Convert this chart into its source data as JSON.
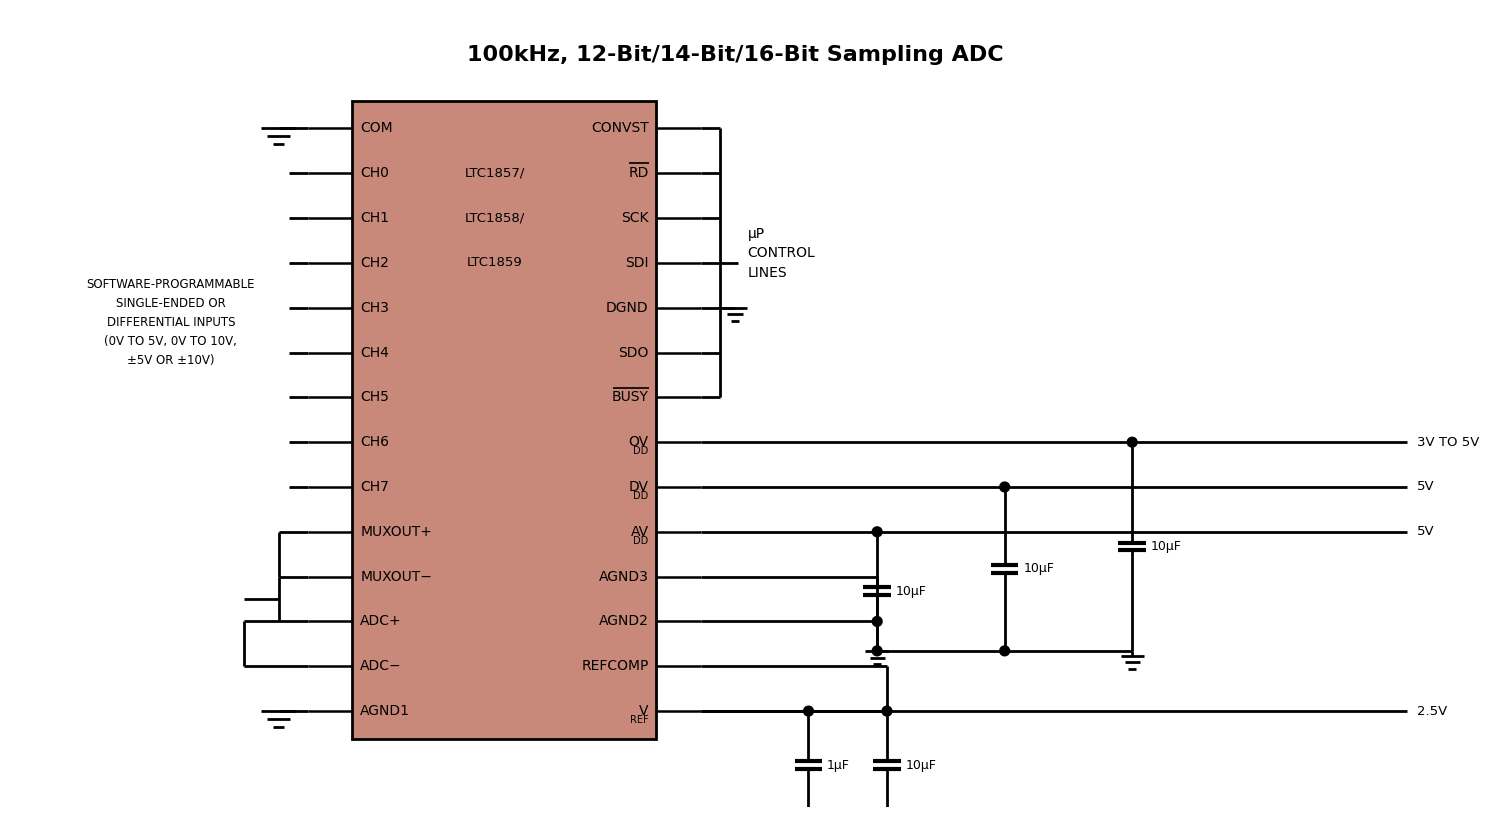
{
  "title": "100kHz, 12-Bit/14-Bit/16-Bit Sampling ADC",
  "title_fontsize": 16,
  "bg_color": "#ffffff",
  "chip_color": "#c8897a",
  "chip_outline_color": "#000000",
  "line_color": "#000000",
  "text_color": "#000000",
  "left_pins": [
    "COM",
    "CH0",
    "CH1",
    "CH2",
    "CH3",
    "CH4",
    "CH5",
    "CH6",
    "CH7",
    "MUXOUT+",
    "MUXOUT−",
    "ADC+",
    "ADC−",
    "AGND1"
  ],
  "right_pins": [
    "CONVST",
    "RD",
    "SCK",
    "SDI",
    "DGND",
    "SDO",
    "BUSY",
    "OVDD",
    "DVDD",
    "AVDD",
    "AGND3",
    "AGND2",
    "REFCOMP",
    "VREF"
  ],
  "chip_label": [
    "LTC1857/",
    "LTC1858/",
    "LTC1859"
  ],
  "left_label": "SOFTWARE-PROGRAMMABLE\nSINGLE-ENDED OR\nDIFFERENTIAL INPUTS\n(0V TO 5V, 0V TO 10V,\n±5V OR ±10V)",
  "right_label_control": "μP\nCONTROL\nLINES"
}
